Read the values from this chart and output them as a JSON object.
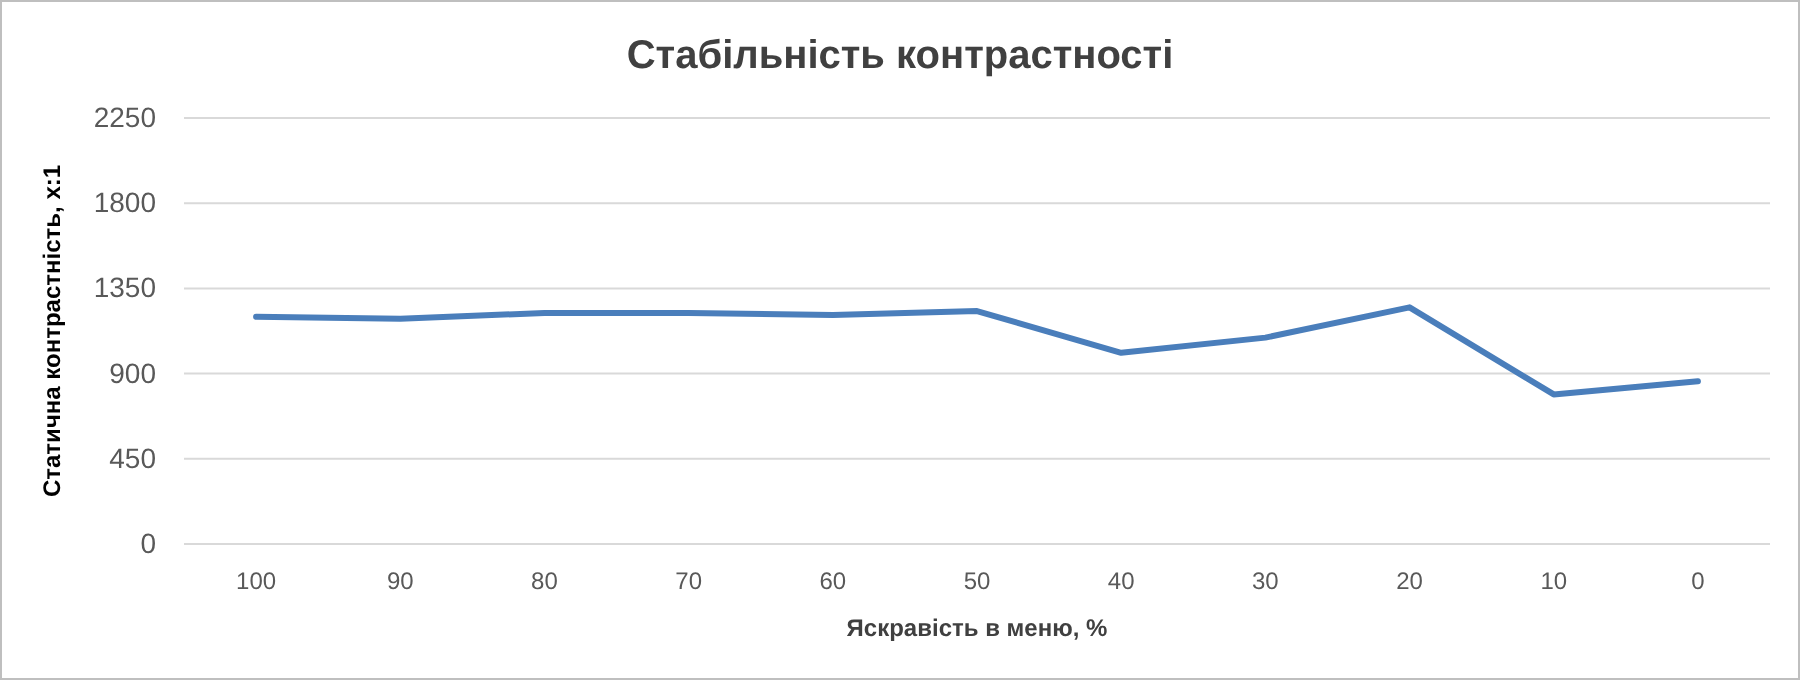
{
  "chart_data": {
    "type": "line",
    "title": "Стабільність контрастності",
    "xlabel": "Яскравість в меню, %",
    "ylabel": "Статична контрастність, x:1",
    "categories": [
      "100",
      "90",
      "80",
      "70",
      "60",
      "50",
      "40",
      "30",
      "20",
      "10",
      "0"
    ],
    "series": [
      {
        "color": "#4a7ebb",
        "values": [
          1200,
          1190,
          1220,
          1220,
          1210,
          1230,
          1010,
          1090,
          1250,
          790,
          860
        ]
      }
    ],
    "ylim": [
      0,
      2250
    ],
    "yticks": [
      0,
      450,
      900,
      1350,
      1800,
      2250
    ],
    "grid": "y",
    "marker": "none",
    "line_style": "solid"
  }
}
